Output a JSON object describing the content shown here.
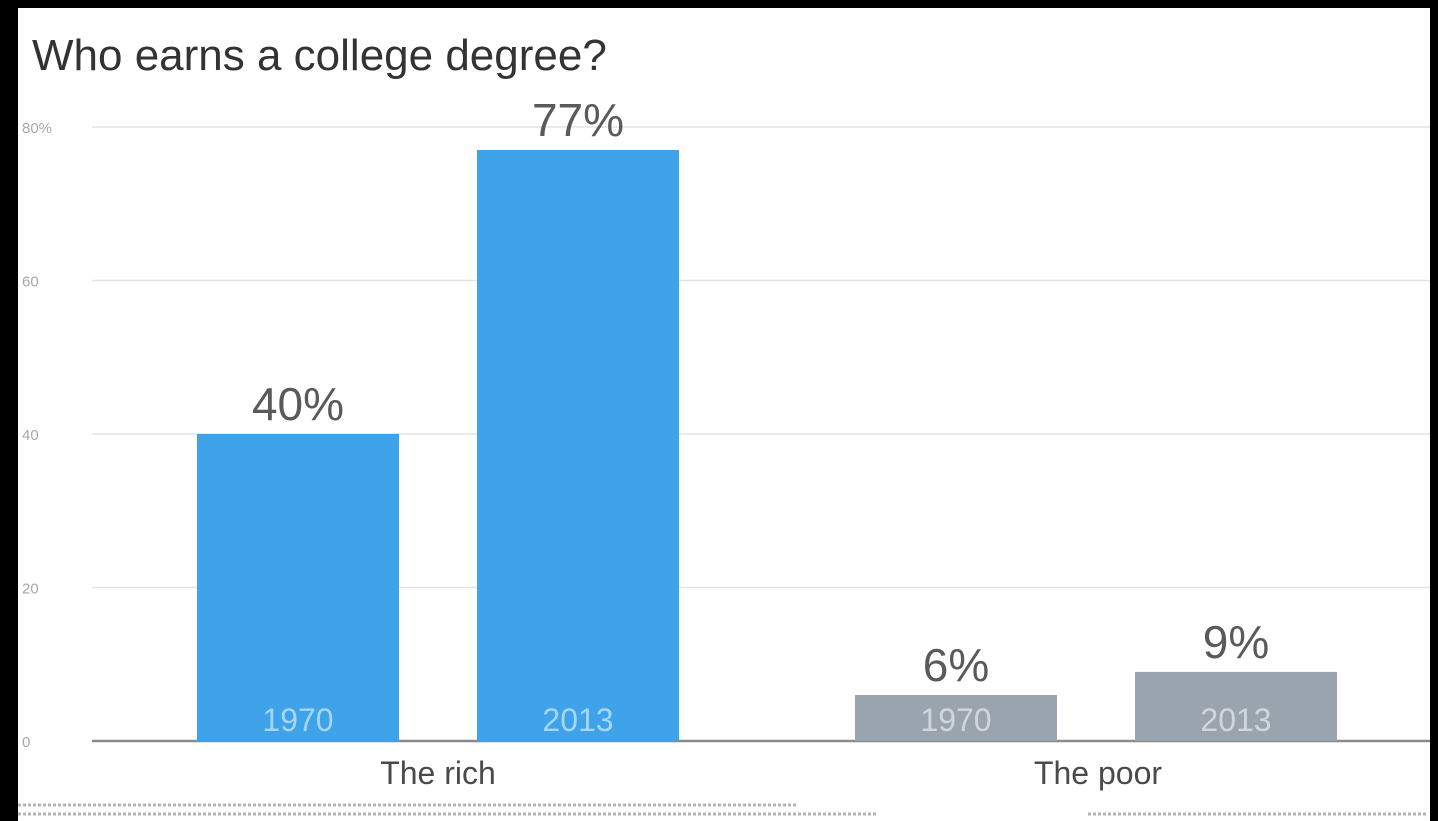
{
  "chart_data": {
    "type": "bar",
    "title": "Who earns a college degree?",
    "xlabel": "",
    "ylabel": "",
    "ylim": [
      0,
      80
    ],
    "yticks": [
      {
        "value": 0,
        "label": "0"
      },
      {
        "value": 20,
        "label": "20"
      },
      {
        "value": 40,
        "label": "40"
      },
      {
        "value": 60,
        "label": "60"
      },
      {
        "value": 80,
        "label": "80%"
      }
    ],
    "grid": true,
    "legend": "none",
    "categories": [
      "The rich",
      "The poor"
    ],
    "bars": [
      {
        "group": "The rich",
        "year": "1970",
        "value": 40,
        "label": "40%",
        "color": "#3ea3e8"
      },
      {
        "group": "The rich",
        "year": "2013",
        "value": 77,
        "label": "77%",
        "color": "#3ea3e8"
      },
      {
        "group": "The poor",
        "year": "1970",
        "value": 6,
        "label": "6%",
        "color": "#9aa4ae"
      },
      {
        "group": "The poor",
        "year": "2013",
        "value": 9,
        "label": "9%",
        "color": "#9aa4ae"
      }
    ],
    "colors": {
      "rich": "#3ea3e8",
      "poor": "#9aa4ae",
      "grid": "#e4e4e4",
      "baseline": "#8a8a8a"
    }
  }
}
